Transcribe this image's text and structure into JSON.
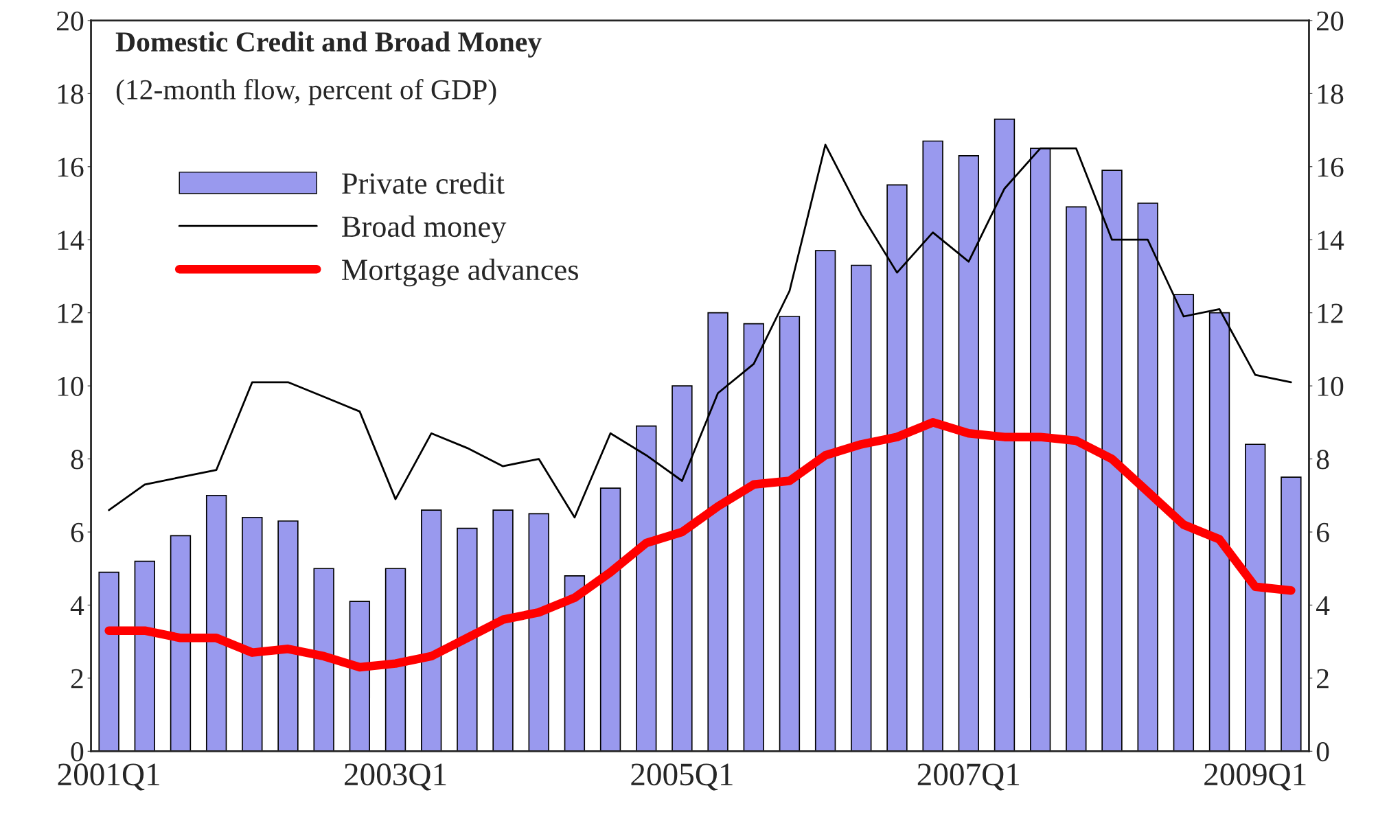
{
  "chart_data": {
    "type": "bar",
    "title": "Domestic Credit and Broad Money",
    "subtitle": "(12-month flow, percent of GDP)",
    "categories": [
      "2001Q1",
      null,
      null,
      null,
      null,
      null,
      null,
      null,
      "2003Q1",
      null,
      null,
      null,
      null,
      null,
      null,
      null,
      "2005Q1",
      null,
      null,
      null,
      null,
      null,
      null,
      null,
      "2007Q1",
      null,
      null,
      null,
      null,
      null,
      null,
      null,
      "2009Q1",
      null
    ],
    "series": [
      {
        "name": "Private credit",
        "color": "#9999ee",
        "values": [
          4.9,
          5.2,
          5.9,
          7.0,
          6.4,
          6.3,
          5.0,
          4.1,
          5.0,
          6.6,
          6.1,
          6.6,
          6.5,
          4.8,
          7.2,
          8.9,
          10.0,
          12.0,
          11.7,
          11.9,
          13.7,
          13.3,
          15.5,
          16.7,
          16.3,
          17.3,
          16.5,
          14.9,
          15.9,
          15.0,
          12.5,
          12.0,
          8.4,
          7.5
        ]
      },
      {
        "name": "Broad money",
        "type": "line",
        "color": "#000000",
        "values": [
          6.6,
          7.3,
          7.5,
          7.7,
          10.1,
          10.1,
          9.7,
          9.3,
          6.9,
          8.7,
          8.3,
          7.8,
          8.0,
          6.4,
          8.7,
          8.1,
          7.4,
          9.8,
          10.6,
          12.6,
          16.6,
          14.7,
          13.1,
          14.2,
          13.4,
          15.4,
          16.5,
          16.5,
          14.0,
          14.0,
          11.9,
          12.1,
          10.3,
          10.1
        ]
      },
      {
        "name": "Mortgage advances",
        "type": "line",
        "color": "#ff0000",
        "values": [
          3.3,
          3.3,
          3.1,
          3.1,
          2.7,
          2.8,
          2.6,
          2.3,
          2.4,
          2.6,
          3.1,
          3.6,
          3.8,
          4.2,
          4.9,
          5.7,
          6.0,
          6.7,
          7.3,
          7.4,
          8.1,
          8.4,
          8.6,
          9.0,
          8.7,
          8.6,
          8.6,
          8.5,
          8.0,
          7.1,
          6.2,
          5.8,
          4.5,
          4.4
        ]
      }
    ],
    "ylim": [
      0,
      20
    ],
    "yticks": [
      0,
      2,
      4,
      6,
      8,
      10,
      12,
      14,
      16,
      18,
      20
    ],
    "y2lim": [
      0,
      20
    ],
    "y2ticks": [
      0,
      2,
      4,
      6,
      8,
      10,
      12,
      14,
      16,
      18,
      20
    ],
    "grid": false,
    "legend": "top left"
  }
}
